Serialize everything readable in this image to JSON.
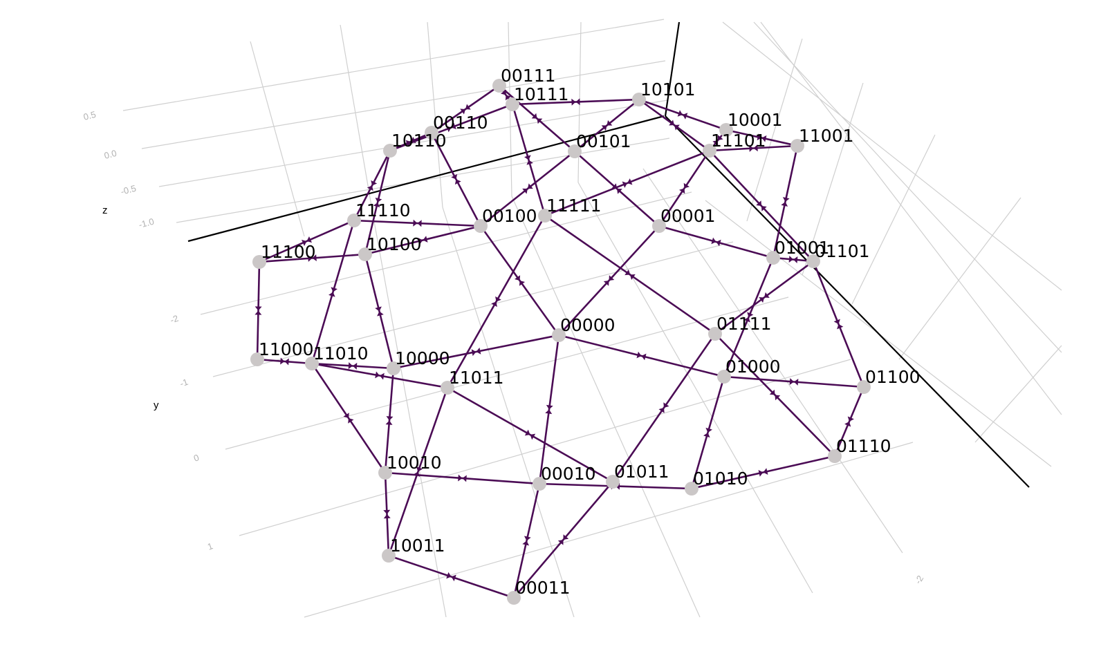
{
  "chart_data": {
    "type": "network-3d",
    "title": "",
    "axes": {
      "z": {
        "label": "z",
        "ticks": [
          "0.5",
          "0.0",
          "-0.5",
          "-1.0"
        ]
      },
      "y": {
        "label": "y",
        "ticks": [
          "-2",
          "-1",
          "0",
          "1"
        ]
      },
      "x": {
        "label": "",
        "ticks": [
          "-2"
        ]
      }
    },
    "nodes": [
      "00000",
      "00001",
      "00010",
      "00011",
      "00100",
      "00101",
      "00110",
      "00111",
      "01000",
      "01001",
      "01010",
      "01011",
      "01100",
      "01101",
      "01110",
      "01111",
      "10000",
      "10001",
      "10010",
      "10011",
      "10100",
      "10101",
      "10110",
      "10111",
      "11000",
      "11001",
      "11010",
      "11011",
      "11100",
      "11101",
      "11110",
      "11111"
    ],
    "edges": [
      [
        "00111",
        "10111"
      ],
      [
        "00111",
        "00110"
      ],
      [
        "00111",
        "00101"
      ],
      [
        "10111",
        "10101"
      ],
      [
        "10111",
        "10110"
      ],
      [
        "10111",
        "11111"
      ],
      [
        "10101",
        "00101"
      ],
      [
        "10101",
        "10001"
      ],
      [
        "10101",
        "11101"
      ],
      [
        "10001",
        "11001"
      ],
      [
        "10001",
        "11101"
      ],
      [
        "11001",
        "11101"
      ],
      [
        "11001",
        "01001"
      ],
      [
        "00110",
        "10110"
      ],
      [
        "00110",
        "00100"
      ],
      [
        "10110",
        "11110"
      ],
      [
        "10110",
        "10100"
      ],
      [
        "00101",
        "00100"
      ],
      [
        "00101",
        "00001"
      ],
      [
        "11101",
        "11111"
      ],
      [
        "11101",
        "00001"
      ],
      [
        "11101",
        "01101"
      ],
      [
        "11110",
        "00100"
      ],
      [
        "11110",
        "11100"
      ],
      [
        "11110",
        "11010"
      ],
      [
        "10100",
        "00100"
      ],
      [
        "10100",
        "11100"
      ],
      [
        "10100",
        "10000"
      ],
      [
        "00100",
        "00000"
      ],
      [
        "11111",
        "11011"
      ],
      [
        "11111",
        "01111"
      ],
      [
        "00001",
        "01001"
      ],
      [
        "00001",
        "00000"
      ],
      [
        "01001",
        "01101"
      ],
      [
        "01001",
        "01000"
      ],
      [
        "01101",
        "01100"
      ],
      [
        "01101",
        "01111"
      ],
      [
        "11100",
        "11000"
      ],
      [
        "11000",
        "11010"
      ],
      [
        "11010",
        "10000"
      ],
      [
        "11010",
        "11011"
      ],
      [
        "11010",
        "10010"
      ],
      [
        "10000",
        "00000"
      ],
      [
        "10000",
        "10010"
      ],
      [
        "00000",
        "01000"
      ],
      [
        "00000",
        "00010"
      ],
      [
        "01111",
        "01110"
      ],
      [
        "01111",
        "01011"
      ],
      [
        "11011",
        "01011"
      ],
      [
        "11011",
        "10011"
      ],
      [
        "01000",
        "01100"
      ],
      [
        "01000",
        "01010"
      ],
      [
        "01100",
        "01110"
      ],
      [
        "01110",
        "01010"
      ],
      [
        "10010",
        "00010"
      ],
      [
        "10010",
        "10011"
      ],
      [
        "00010",
        "01010"
      ],
      [
        "00010",
        "00011"
      ],
      [
        "01011",
        "00011"
      ],
      [
        "10011",
        "00011"
      ]
    ]
  }
}
